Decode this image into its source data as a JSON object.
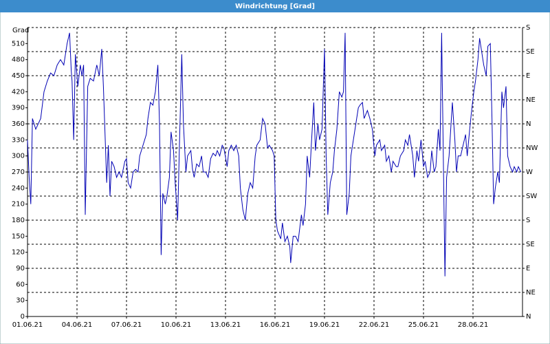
{
  "chart_data": {
    "type": "line",
    "title": "Windrichtung [Grad]",
    "y_label": "Grad",
    "color": "#0000b4",
    "grid": true,
    "x": [
      0,
      0.1,
      0.2,
      0.3,
      0.5,
      0.8,
      1.0,
      1.2,
      1.4,
      1.6,
      1.8,
      2.0,
      2.2,
      2.4,
      2.55,
      2.65,
      2.7,
      2.8,
      2.9,
      3.05,
      3.2,
      3.3,
      3.4,
      3.5,
      3.65,
      3.8,
      4.0,
      4.2,
      4.35,
      4.5,
      4.6,
      4.8,
      4.9,
      5.0,
      5.1,
      5.25,
      5.4,
      5.55,
      5.7,
      5.9,
      6.0,
      6.1,
      6.25,
      6.4,
      6.55,
      6.7,
      6.8,
      7.0,
      7.2,
      7.3,
      7.45,
      7.6,
      7.75,
      7.9,
      8.0,
      8.1,
      8.2,
      8.35,
      8.45,
      8.6,
      8.7,
      8.85,
      8.95,
      9.1,
      9.2,
      9.35,
      9.45,
      9.6,
      9.7,
      9.9,
      10.0,
      10.1,
      10.25,
      10.4,
      10.55,
      10.65,
      10.8,
      10.95,
      11.1,
      11.25,
      11.4,
      11.5,
      11.65,
      11.8,
      11.9,
      12.1,
      12.2,
      12.35,
      12.5,
      12.65,
      12.8,
      12.9,
      13.05,
      13.2,
      13.35,
      13.5,
      13.65,
      13.8,
      13.9,
      14.1,
      14.25,
      14.4,
      14.55,
      14.65,
      14.85,
      14.95,
      15.05,
      15.15,
      15.35,
      15.45,
      15.6,
      15.75,
      15.9,
      15.95,
      16.1,
      16.25,
      16.4,
      16.6,
      16.7,
      16.85,
      16.95,
      17.1,
      17.2,
      17.35,
      17.45,
      17.6,
      17.7,
      17.85,
      17.95,
      18.0,
      18.1,
      18.2,
      18.35,
      18.5,
      18.6,
      18.75,
      18.9,
      19.05,
      19.15,
      19.25,
      19.35,
      19.5,
      19.6,
      19.75,
      19.9,
      20.05,
      20.15,
      20.3,
      20.4,
      20.6,
      20.75,
      20.9,
      21.05,
      21.15,
      21.35,
      21.45,
      21.65,
      21.75,
      21.9,
      22.05,
      22.15,
      22.35,
      22.45,
      22.6,
      22.8,
      22.9,
      23.05,
      23.15,
      23.35,
      23.45,
      23.6,
      23.7,
      23.85,
      24.0,
      24.1,
      24.25,
      24.4,
      24.5,
      24.65,
      24.75,
      24.9,
      25.0,
      25.1,
      25.2,
      25.3,
      25.4,
      25.55,
      25.65,
      25.75,
      25.9,
      26.0,
      26.1,
      26.25,
      26.4,
      26.55,
      26.65,
      26.8,
      26.9,
      27.05,
      27.15,
      27.3,
      27.4,
      27.55,
      27.65,
      27.8,
      27.9,
      28.05,
      28.15,
      28.25,
      28.35,
      28.5,
      28.6,
      28.75,
      28.85,
      29.0,
      29.1,
      29.25,
      29.4,
      29.5,
      29.65,
      29.75,
      29.9
    ],
    "values": [
      330,
      260,
      210,
      370,
      350,
      370,
      420,
      440,
      455,
      450,
      470,
      480,
      470,
      510,
      530,
      460,
      440,
      330,
      490,
      430,
      470,
      450,
      470,
      190,
      430,
      445,
      440,
      470,
      450,
      500,
      430,
      250,
      320,
      225,
      290,
      280,
      260,
      270,
      260,
      290,
      295,
      250,
      240,
      270,
      275,
      270,
      300,
      320,
      340,
      370,
      400,
      395,
      420,
      470,
      360,
      115,
      230,
      210,
      225,
      260,
      345,
      310,
      250,
      180,
      310,
      490,
      360,
      270,
      300,
      310,
      275,
      260,
      285,
      280,
      300,
      270,
      270,
      260,
      295,
      305,
      300,
      310,
      300,
      320,
      315,
      280,
      310,
      320,
      310,
      320,
      300,
      240,
      200,
      180,
      230,
      250,
      240,
      300,
      320,
      330,
      370,
      360,
      315,
      320,
      310,
      300,
      180,
      160,
      145,
      175,
      140,
      150,
      130,
      100,
      150,
      150,
      140,
      190,
      170,
      210,
      300,
      260,
      320,
      400,
      310,
      360,
      330,
      350,
      450,
      500,
      300,
      190,
      250,
      270,
      310,
      350,
      420,
      410,
      420,
      530,
      190,
      230,
      300,
      330,
      360,
      390,
      395,
      400,
      370,
      385,
      370,
      350,
      300,
      320,
      330,
      310,
      320,
      290,
      300,
      270,
      290,
      280,
      280,
      300,
      310,
      330,
      320,
      340,
      300,
      260,
      310,
      290,
      330,
      280,
      290,
      260,
      270,
      310,
      270,
      280,
      350,
      310,
      530,
      300,
      75,
      260,
      300,
      350,
      400,
      330,
      270,
      300,
      300,
      320,
      340,
      300,
      350,
      380,
      420,
      440,
      480,
      520,
      490,
      470,
      450,
      505,
      510,
      370,
      210,
      240,
      270,
      250,
      420,
      390,
      430,
      300,
      280,
      270,
      280,
      270,
      280,
      270
    ],
    "xlim": [
      0,
      30
    ],
    "xticks": [
      {
        "value": 0,
        "label": "01.06.21"
      },
      {
        "value": 3,
        "label": "04.06.21"
      },
      {
        "value": 6,
        "label": "07.06.21"
      },
      {
        "value": 9,
        "label": "10.06.21"
      },
      {
        "value": 12,
        "label": "13.06.21"
      },
      {
        "value": 15,
        "label": "16.06.21"
      },
      {
        "value": 18,
        "label": "19.06.21"
      },
      {
        "value": 21,
        "label": "22.06.21"
      },
      {
        "value": 24,
        "label": "25.06.21"
      },
      {
        "value": 27,
        "label": "28.06.21"
      }
    ],
    "ylim": [
      0,
      540
    ],
    "yticks": [
      0,
      30,
      60,
      90,
      120,
      150,
      180,
      210,
      240,
      270,
      300,
      330,
      360,
      390,
      420,
      450,
      480,
      510
    ],
    "y2lim": [
      0,
      540
    ],
    "y2ticks": [
      {
        "value": 540,
        "label": "S"
      },
      {
        "value": 495,
        "label": "SE"
      },
      {
        "value": 450,
        "label": "E"
      },
      {
        "value": 405,
        "label": "NE"
      },
      {
        "value": 360,
        "label": "N"
      },
      {
        "value": 315,
        "label": "NW"
      },
      {
        "value": 270,
        "label": "W"
      },
      {
        "value": 225,
        "label": "SW"
      },
      {
        "value": 180,
        "label": "S"
      },
      {
        "value": 135,
        "label": "SE"
      },
      {
        "value": 90,
        "label": "E"
      },
      {
        "value": 45,
        "label": "NE"
      },
      {
        "value": 0,
        "label": "N"
      }
    ]
  }
}
